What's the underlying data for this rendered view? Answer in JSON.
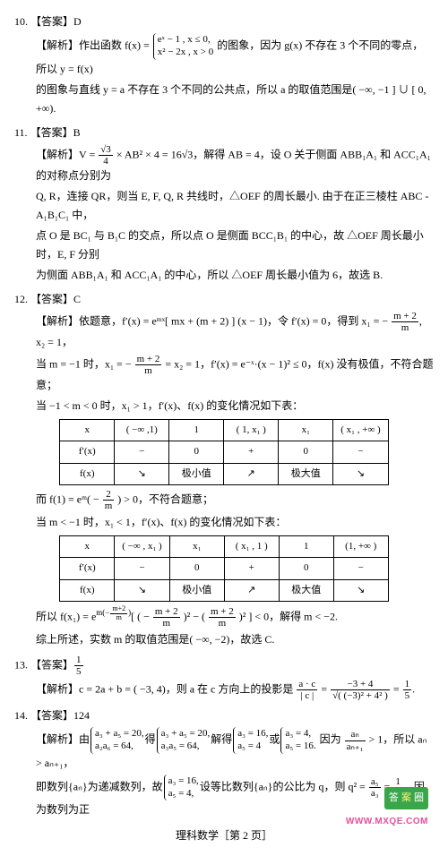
{
  "q10": {
    "num": "10.",
    "ans_label": "【答案】",
    "ans": "D",
    "exp_label": "【解析】",
    "exp1a": "作出函数 f(x) = ",
    "case_top": "eˣ − 1 , x ≤ 0,",
    "case_bot": "x² − 2x , x > 0",
    "exp1b": " 的图象，因为 g(x) 不存在 3 个不同的零点，所以 y = f(x)",
    "exp2": "的图象与直线 y = a 不存在 3 个不同的公共点，所以 a 的取值范围是( −∞, −1 ] ∪ [ 0, +∞)."
  },
  "q11": {
    "num": "11.",
    "ans_label": "【答案】",
    "ans": "B",
    "exp_label": "【解析】",
    "exp1a": "V = ",
    "frac_num": "√3",
    "frac_den": "4",
    "exp1b": " × AB² × 4 = 16",
    "root3": "√3",
    "exp1c": "，解得 AB = 4，设 O 关于侧面 ABB₁A₁ 和 ACC₁A₁ 的对称点分别为",
    "exp2": "Q, R，连接 QR，则当 E, F, Q, R 共线时，△OEF 的周长最小. 由于在正三棱柱 ABC - A₁B₁C₁ 中，",
    "exp3": "点 O 是 BC₁ 与 B₁C 的交点，所以点 O 是侧面 BCC₁B₁ 的中心，故 △OEF 周长最小时，E, F 分别",
    "exp4": "为侧面 ABB₁A₁ 和 ACC₁A₁ 的中心，所以 △OEF 周长最小值为 6，故选 B."
  },
  "q12": {
    "num": "12.",
    "ans_label": "【答案】",
    "ans": "C",
    "exp_label": "【解析】",
    "exp1a": "依题意，f′(x) = eᵐˣ[ mx + (m + 2) ] (x − 1)，令 f′(x) = 0，得到 x₁ = − ",
    "frac1_num": "m + 2",
    "frac1_den": "m",
    "exp1b": ", x₂ = 1，",
    "exp2a": "当 m = −1 时，x₁ = − ",
    "exp2b": " = x₂ = 1，f′(x) = e⁻ˣ·(x − 1)² ≤ 0，f(x) 没有极值，不符合题意；",
    "exp3": "当 −1 < m < 0 时，x₁ > 1，f′(x)、f(x) 的变化情况如下表：",
    "table1": {
      "header": [
        "x",
        "( −∞ ,1)",
        "1",
        "( 1, x₁ )",
        "x₁",
        "( x₁ , +∞ )"
      ],
      "row_fp": [
        "f′(x)",
        "−",
        "0",
        "+",
        "0",
        "−"
      ],
      "row_f": [
        "f(x)",
        "↘",
        "极小值",
        "↗",
        "极大值",
        "↘"
      ]
    },
    "exp4a": "而 f(1) = eᵐ( − ",
    "frac2_num": "2",
    "frac2_den": "m",
    "exp4b": " ) > 0，不符合题意；",
    "exp5": "当 m < −1 时，x₁ < 1，f′(x)、f(x) 的变化情况如下表：",
    "table2": {
      "header": [
        "x",
        "( −∞ , x₁ )",
        "x₁",
        "( x₁ , 1 )",
        "1",
        "(1, +∞ )"
      ],
      "row_fp": [
        "f′(x)",
        "−",
        "0",
        "+",
        "0",
        "−"
      ],
      "row_f": [
        "f(x)",
        "↘",
        "极小值",
        "↗",
        "极大值",
        "↘"
      ]
    },
    "exp6a": "所以 f(x₁) = e",
    "exp6_sup": "m(−",
    "exp6_supfrac_num": "m+2",
    "exp6_supfrac_den": "m",
    "exp6_sup2": ")",
    "exp6b": "[ ( − ",
    "frac3_num": "m + 2",
    "frac3_den": "m",
    "exp6c": " )² − ( ",
    "frac4_num": "m + 2",
    "frac4_den": "m",
    "exp6d": " )² ] < 0，解得 m < −2.",
    "exp7": "综上所述，实数 m 的取值范围是( −∞, −2)，故选 C."
  },
  "q13": {
    "num": "13.",
    "ans_label": "【答案】",
    "ans_frac_num": "1",
    "ans_frac_den": "5",
    "exp_label": "【解析】",
    "exp1": "c = 2a + b = ( −3, 4)，则 a 在 c 方向上的投影是 ",
    "frac_top": "a · c",
    "frac_bot": "| c |",
    "eq": " = ",
    "frac2_top": "−3 + 4",
    "frac2_bot": "√( (−3)² + 4² )",
    "eq2": " = ",
    "res_num": "1",
    "res_den": "5",
    "period": "."
  },
  "q14": {
    "num": "14.",
    "ans_label": "【答案】",
    "ans": "124",
    "exp_label": "【解析】",
    "exp1a": "由",
    "c1_top": "a₃ + a₅ = 20,",
    "c1_bot": "a₂a₆ = 64,",
    "exp1b": "得",
    "c2_top": "a₃ + a₅ = 20,",
    "c2_bot": "a₃a₅ = 64,",
    "exp1c": "解得",
    "c3_top": "a₃ = 16,",
    "c3_bot": "a₅ = 4",
    "exp1d": "或",
    "c4_top": "a₃ = 4,",
    "c4_bot": "a₅ = 16.",
    "exp1e": " 因为 ",
    "frac_num": "aₙ",
    "frac_den": "aₙ₊₁",
    "exp1f": " > 1，所以 aₙ > aₙ₊₁，",
    "exp2a": "即数列{aₙ}为递减数列，故",
    "c5_top": "a₃ = 16,",
    "c5_bot": "a₅ = 4,",
    "exp2b": "设等比数列{aₙ}的公比为 q，则 q² = ",
    "frac2_num": "a₅",
    "frac2_den": "a₃",
    "eq": " = ",
    "frac3_num": "1",
    "frac3_den": "4",
    "exp2c": "，因为数列为正"
  },
  "footer": "理科数学［第 2 页］",
  "wm1": "答",
  "wm2": "案",
  "wm3": "圈",
  "wm_site": "WWW.MXQE.COM"
}
